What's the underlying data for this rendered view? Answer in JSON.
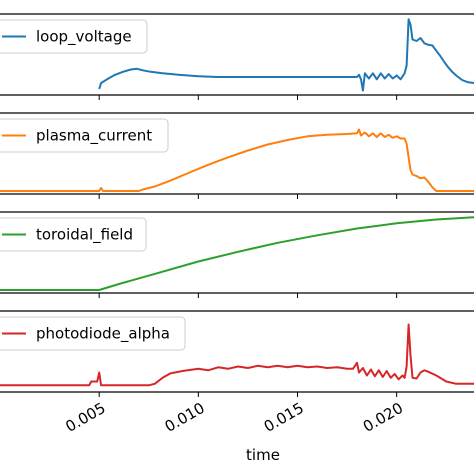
{
  "chart_data": {
    "type": "line",
    "xlabel": "time",
    "xlim": [
      0.0,
      0.0239
    ],
    "x_ticks": [
      {
        "value": 0.005,
        "label": "0.005"
      },
      {
        "value": 0.01,
        "label": "0.010"
      },
      {
        "value": 0.015,
        "label": "0.015"
      },
      {
        "value": 0.02,
        "label": "0.020"
      }
    ],
    "series": [
      {
        "name": "loop_voltage",
        "color": "#1f77b4",
        "ylim": [
          0,
          1
        ],
        "points": [
          [
            0.005,
            0.04
          ],
          [
            0.0051,
            0.12
          ],
          [
            0.0054,
            0.17
          ],
          [
            0.0058,
            0.23
          ],
          [
            0.0062,
            0.27
          ],
          [
            0.0066,
            0.3
          ],
          [
            0.0069,
            0.31
          ],
          [
            0.0072,
            0.29
          ],
          [
            0.0076,
            0.27
          ],
          [
            0.0082,
            0.25
          ],
          [
            0.009,
            0.23
          ],
          [
            0.01,
            0.21
          ],
          [
            0.011,
            0.2
          ],
          [
            0.012,
            0.2
          ],
          [
            0.014,
            0.2
          ],
          [
            0.016,
            0.2
          ],
          [
            0.017,
            0.2
          ],
          [
            0.018,
            0.2
          ],
          [
            0.0181,
            0.23
          ],
          [
            0.0182,
            0.17
          ],
          [
            0.0183,
            0.02
          ],
          [
            0.0184,
            0.25
          ],
          [
            0.0186,
            0.18
          ],
          [
            0.0188,
            0.25
          ],
          [
            0.019,
            0.17
          ],
          [
            0.0192,
            0.25
          ],
          [
            0.0194,
            0.18
          ],
          [
            0.0196,
            0.24
          ],
          [
            0.0198,
            0.18
          ],
          [
            0.02,
            0.22
          ],
          [
            0.0202,
            0.17
          ],
          [
            0.0204,
            0.25
          ],
          [
            0.0205,
            0.35
          ],
          [
            0.0206,
            0.97
          ],
          [
            0.0207,
            0.9
          ],
          [
            0.0208,
            0.7
          ],
          [
            0.021,
            0.68
          ],
          [
            0.0212,
            0.72
          ],
          [
            0.0214,
            0.65
          ],
          [
            0.0216,
            0.63
          ],
          [
            0.0218,
            0.62
          ],
          [
            0.022,
            0.55
          ],
          [
            0.0222,
            0.48
          ],
          [
            0.0224,
            0.4
          ],
          [
            0.0226,
            0.33
          ],
          [
            0.0228,
            0.27
          ],
          [
            0.023,
            0.22
          ],
          [
            0.0233,
            0.16
          ],
          [
            0.0236,
            0.13
          ],
          [
            0.0239,
            0.12
          ]
        ]
      },
      {
        "name": "plasma_current",
        "color": "#ff7f0e",
        "ylim": [
          0,
          1
        ],
        "points": [
          [
            0.0,
            0.0
          ],
          [
            0.005,
            0.0
          ],
          [
            0.0051,
            0.04
          ],
          [
            0.0052,
            0.0
          ],
          [
            0.007,
            0.0
          ],
          [
            0.0072,
            0.02
          ],
          [
            0.0078,
            0.06
          ],
          [
            0.0085,
            0.13
          ],
          [
            0.0095,
            0.24
          ],
          [
            0.0105,
            0.35
          ],
          [
            0.0115,
            0.45
          ],
          [
            0.0125,
            0.54
          ],
          [
            0.0135,
            0.62
          ],
          [
            0.0145,
            0.68
          ],
          [
            0.0155,
            0.73
          ],
          [
            0.0165,
            0.75
          ],
          [
            0.0175,
            0.76
          ],
          [
            0.018,
            0.77
          ],
          [
            0.0181,
            0.82
          ],
          [
            0.0182,
            0.74
          ],
          [
            0.0184,
            0.78
          ],
          [
            0.0186,
            0.73
          ],
          [
            0.0188,
            0.77
          ],
          [
            0.019,
            0.72
          ],
          [
            0.0192,
            0.77
          ],
          [
            0.0194,
            0.72
          ],
          [
            0.0196,
            0.75
          ],
          [
            0.0198,
            0.71
          ],
          [
            0.02,
            0.73
          ],
          [
            0.0202,
            0.7
          ],
          [
            0.0204,
            0.7
          ],
          [
            0.0205,
            0.63
          ],
          [
            0.0206,
            0.45
          ],
          [
            0.0207,
            0.28
          ],
          [
            0.0208,
            0.22
          ],
          [
            0.021,
            0.2
          ],
          [
            0.0212,
            0.17
          ],
          [
            0.0214,
            0.18
          ],
          [
            0.0216,
            0.12
          ],
          [
            0.0218,
            0.05
          ],
          [
            0.022,
            0.0
          ],
          [
            0.0239,
            0.0
          ]
        ]
      },
      {
        "name": "toroidal_field",
        "color": "#2ca02c",
        "ylim": [
          0,
          1
        ],
        "points": [
          [
            0.0,
            0.0
          ],
          [
            0.005,
            0.0
          ],
          [
            0.006,
            0.08
          ],
          [
            0.008,
            0.23
          ],
          [
            0.01,
            0.38
          ],
          [
            0.012,
            0.51
          ],
          [
            0.014,
            0.63
          ],
          [
            0.016,
            0.73
          ],
          [
            0.018,
            0.82
          ],
          [
            0.02,
            0.89
          ],
          [
            0.022,
            0.94
          ],
          [
            0.0239,
            0.97
          ]
        ]
      },
      {
        "name": "photodiode_alpha",
        "color": "#d62728",
        "ylim": [
          0,
          1
        ],
        "points": [
          [
            0.0,
            0.05
          ],
          [
            0.004,
            0.05
          ],
          [
            0.0045,
            0.05
          ],
          [
            0.0046,
            0.1
          ],
          [
            0.0049,
            0.1
          ],
          [
            0.005,
            0.22
          ],
          [
            0.0051,
            0.05
          ],
          [
            0.0075,
            0.05
          ],
          [
            0.0078,
            0.07
          ],
          [
            0.0082,
            0.15
          ],
          [
            0.0086,
            0.21
          ],
          [
            0.0092,
            0.24
          ],
          [
            0.01,
            0.27
          ],
          [
            0.0105,
            0.25
          ],
          [
            0.011,
            0.29
          ],
          [
            0.0115,
            0.27
          ],
          [
            0.012,
            0.3
          ],
          [
            0.0125,
            0.28
          ],
          [
            0.013,
            0.31
          ],
          [
            0.0135,
            0.29
          ],
          [
            0.014,
            0.31
          ],
          [
            0.0145,
            0.29
          ],
          [
            0.015,
            0.31
          ],
          [
            0.0155,
            0.29
          ],
          [
            0.016,
            0.3
          ],
          [
            0.0165,
            0.28
          ],
          [
            0.017,
            0.29
          ],
          [
            0.0175,
            0.27
          ],
          [
            0.0178,
            0.27
          ],
          [
            0.018,
            0.35
          ],
          [
            0.0181,
            0.22
          ],
          [
            0.0183,
            0.28
          ],
          [
            0.0185,
            0.18
          ],
          [
            0.0187,
            0.26
          ],
          [
            0.0189,
            0.17
          ],
          [
            0.0191,
            0.25
          ],
          [
            0.0193,
            0.16
          ],
          [
            0.0195,
            0.24
          ],
          [
            0.0197,
            0.15
          ],
          [
            0.0199,
            0.2
          ],
          [
            0.0201,
            0.13
          ],
          [
            0.0203,
            0.18
          ],
          [
            0.0204,
            0.15
          ],
          [
            0.0205,
            0.3
          ],
          [
            0.0206,
            0.86
          ],
          [
            0.0207,
            0.45
          ],
          [
            0.0208,
            0.15
          ],
          [
            0.021,
            0.14
          ],
          [
            0.0212,
            0.22
          ],
          [
            0.0214,
            0.25
          ],
          [
            0.0216,
            0.23
          ],
          [
            0.022,
            0.18
          ],
          [
            0.0225,
            0.1
          ],
          [
            0.023,
            0.07
          ],
          [
            0.0239,
            0.07
          ]
        ]
      }
    ]
  }
}
